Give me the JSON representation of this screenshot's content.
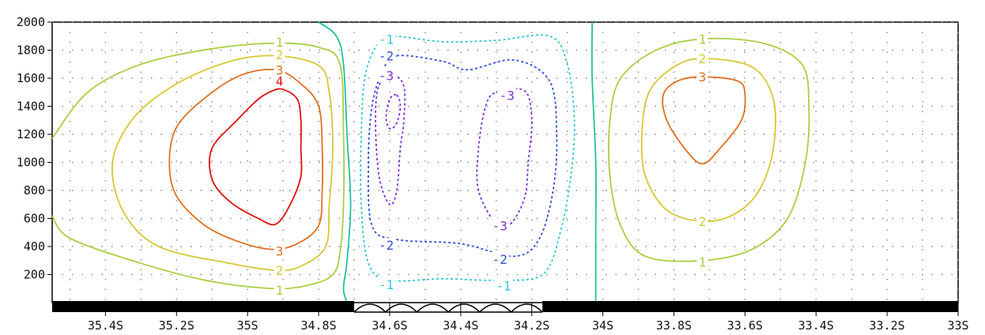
{
  "chart_data": {
    "type": "contour",
    "x_range": [
      -35.55,
      -33.0
    ],
    "y_range": [
      0,
      2000
    ],
    "x_ticks": [
      {
        "value": -35.4,
        "label": "35.4S"
      },
      {
        "value": -35.2,
        "label": "35.2S"
      },
      {
        "value": -35.0,
        "label": "35S"
      },
      {
        "value": -34.8,
        "label": "34.8S"
      },
      {
        "value": -34.6,
        "label": "34.6S"
      },
      {
        "value": -34.4,
        "label": "34.4S"
      },
      {
        "value": -34.2,
        "label": "34.2S"
      },
      {
        "value": -34.0,
        "label": "34S"
      },
      {
        "value": -33.8,
        "label": "33.8S"
      },
      {
        "value": -33.6,
        "label": "33.6S"
      },
      {
        "value": -33.4,
        "label": "33.4S"
      },
      {
        "value": -33.2,
        "label": "33.2S"
      },
      {
        "value": -33.0,
        "label": "33S"
      }
    ],
    "y_ticks": [
      {
        "value": 200,
        "label": "200"
      },
      {
        "value": 400,
        "label": "400"
      },
      {
        "value": 600,
        "label": "600"
      },
      {
        "value": 800,
        "label": "800"
      },
      {
        "value": 1000,
        "label": "1000"
      },
      {
        "value": 1200,
        "label": "1200"
      },
      {
        "value": 1400,
        "label": "1400"
      },
      {
        "value": 1600,
        "label": "1600"
      },
      {
        "value": 1800,
        "label": "1800"
      },
      {
        "value": 2000,
        "label": "2000"
      }
    ],
    "grid": "dotted",
    "terrain": {
      "color": "#000000",
      "solid_segments": [
        [
          -35.55,
          -34.7
        ],
        [
          -34.17,
          -33.0
        ]
      ],
      "arches_segment": [
        -34.7,
        -34.17
      ]
    },
    "contours": [
      {
        "level": 4,
        "color": "#e01010",
        "dashed": false,
        "points": [
          [
            -34.9,
            1520
          ],
          [
            -34.86,
            1450
          ],
          [
            -34.85,
            1300
          ],
          [
            -34.85,
            1100
          ],
          [
            -34.85,
            900
          ],
          [
            -34.88,
            700
          ],
          [
            -34.92,
            560
          ],
          [
            -34.97,
            600
          ],
          [
            -35.05,
            720
          ],
          [
            -35.1,
            880
          ],
          [
            -35.1,
            1100
          ],
          [
            -35.03,
            1300
          ],
          [
            -34.97,
            1450
          ],
          [
            -34.93,
            1510
          ]
        ],
        "labels": [
          {
            "x": -34.91,
            "y": 1580,
            "text": "4"
          }
        ]
      },
      {
        "level": 3,
        "color": "#e07020",
        "dashed": false,
        "points": [
          [
            -34.92,
            1660
          ],
          [
            -34.85,
            1560
          ],
          [
            -34.8,
            1400
          ],
          [
            -34.79,
            1100
          ],
          [
            -34.79,
            800
          ],
          [
            -34.8,
            550
          ],
          [
            -34.86,
            420
          ],
          [
            -34.93,
            380
          ],
          [
            -35.02,
            430
          ],
          [
            -35.12,
            550
          ],
          [
            -35.2,
            760
          ],
          [
            -35.22,
            1000
          ],
          [
            -35.2,
            1250
          ],
          [
            -35.12,
            1460
          ],
          [
            -35.02,
            1620
          ]
        ],
        "labels": [
          {
            "x": -34.91,
            "y": 1660,
            "text": "3"
          },
          {
            "x": -34.91,
            "y": 370,
            "text": "3"
          }
        ]
      },
      {
        "level": 2,
        "color": "#d8c830",
        "dashed": false,
        "points": [
          [
            -34.92,
            1760
          ],
          [
            -34.8,
            1690
          ],
          [
            -34.77,
            1500
          ],
          [
            -34.76,
            1100
          ],
          [
            -34.77,
            700
          ],
          [
            -34.78,
            400
          ],
          [
            -34.85,
            260
          ],
          [
            -34.92,
            230
          ],
          [
            -35.05,
            280
          ],
          [
            -35.25,
            400
          ],
          [
            -35.35,
            650
          ],
          [
            -35.38,
            1000
          ],
          [
            -35.32,
            1320
          ],
          [
            -35.2,
            1560
          ],
          [
            -35.05,
            1720
          ]
        ],
        "labels": [
          {
            "x": -34.91,
            "y": 1770,
            "text": "2"
          },
          {
            "x": -34.91,
            "y": 230,
            "text": "2"
          }
        ]
      },
      {
        "level": 1,
        "color": "#a8d040",
        "dashed": false,
        "points": [
          [
            -35.55,
            1170
          ],
          [
            -35.45,
            1500
          ],
          [
            -35.3,
            1700
          ],
          [
            -35.1,
            1810
          ],
          [
            -34.92,
            1850
          ],
          [
            -34.8,
            1820
          ],
          [
            -34.74,
            1700
          ],
          [
            -34.73,
            1200
          ],
          [
            -34.73,
            700
          ],
          [
            -34.74,
            350
          ],
          [
            -34.76,
            200
          ],
          [
            -34.82,
            130
          ],
          [
            -34.92,
            100
          ],
          [
            -35.1,
            150
          ],
          [
            -35.3,
            280
          ],
          [
            -35.5,
            460
          ],
          [
            -35.55,
            620
          ]
        ],
        "closed": false,
        "labels": [
          {
            "x": -34.91,
            "y": 1860,
            "text": "1"
          },
          {
            "x": -34.91,
            "y": 90,
            "text": "1"
          }
        ]
      },
      {
        "level": 0,
        "color": "#20c0a0",
        "dashed": false,
        "points": [
          [
            -34.8,
            2000
          ],
          [
            -34.75,
            1900
          ],
          [
            -34.73,
            1700
          ],
          [
            -34.72,
            1200
          ],
          [
            -34.71,
            700
          ],
          [
            -34.72,
            300
          ],
          [
            -34.73,
            100
          ],
          [
            -34.72,
            0
          ]
        ],
        "closed": false,
        "labels": []
      },
      {
        "level": 0,
        "color": "#20c0a0",
        "dashed": false,
        "points": [
          [
            -34.03,
            2000
          ],
          [
            -34.03,
            1600
          ],
          [
            -34.02,
            1000
          ],
          [
            -34.02,
            500
          ],
          [
            -34.02,
            0
          ]
        ],
        "closed": false,
        "labels": []
      },
      {
        "level": -1,
        "color": "#30c8d8",
        "dashed": true,
        "points": [
          [
            -34.6,
            1900
          ],
          [
            -34.45,
            1860
          ],
          [
            -34.3,
            1870
          ],
          [
            -34.15,
            1900
          ],
          [
            -34.1,
            1700
          ],
          [
            -34.08,
            1300
          ],
          [
            -34.09,
            900
          ],
          [
            -34.12,
            500
          ],
          [
            -34.17,
            200
          ],
          [
            -34.3,
            160
          ],
          [
            -34.45,
            170
          ],
          [
            -34.6,
            160
          ],
          [
            -34.66,
            280
          ],
          [
            -34.68,
            700
          ],
          [
            -34.68,
            1200
          ],
          [
            -34.67,
            1600
          ],
          [
            -34.64,
            1820
          ]
        ],
        "labels": [
          {
            "x": -34.61,
            "y": 1880,
            "text": "-1"
          },
          {
            "x": -34.61,
            "y": 130,
            "text": "-1"
          },
          {
            "x": -34.28,
            "y": 120,
            "text": "-1"
          }
        ]
      },
      {
        "level": -2,
        "color": "#3050d8",
        "dashed": true,
        "points": [
          [
            -34.58,
            1760
          ],
          [
            -34.45,
            1720
          ],
          [
            -34.38,
            1660
          ],
          [
            -34.25,
            1730
          ],
          [
            -34.15,
            1580
          ],
          [
            -34.13,
            1200
          ],
          [
            -34.14,
            800
          ],
          [
            -34.18,
            450
          ],
          [
            -34.25,
            330
          ],
          [
            -34.4,
            420
          ],
          [
            -34.58,
            450
          ],
          [
            -34.65,
            550
          ],
          [
            -34.66,
            1000
          ],
          [
            -34.65,
            1400
          ],
          [
            -34.62,
            1650
          ]
        ],
        "labels": [
          {
            "x": -34.61,
            "y": 1760,
            "text": "-2"
          },
          {
            "x": -34.61,
            "y": 410,
            "text": "-2"
          },
          {
            "x": -34.29,
            "y": 310,
            "text": "-2"
          }
        ]
      },
      {
        "level": -3,
        "color": "#8030d8",
        "dashed": true,
        "points": [
          [
            -34.59,
            1620
          ],
          [
            -34.56,
            1540
          ],
          [
            -34.56,
            1300
          ],
          [
            -34.57,
            1100
          ],
          [
            -34.58,
            800
          ],
          [
            -34.6,
            700
          ],
          [
            -34.63,
            900
          ],
          [
            -34.64,
            1300
          ],
          [
            -34.63,
            1550
          ]
        ],
        "labels": [
          {
            "x": -34.61,
            "y": 1620,
            "text": "-3"
          }
        ]
      },
      {
        "level": -3,
        "color": "#8030d8",
        "dashed": true,
        "points": [
          [
            -34.3,
            1500
          ],
          [
            -34.22,
            1510
          ],
          [
            -34.2,
            1300
          ],
          [
            -34.21,
            1000
          ],
          [
            -34.22,
            750
          ],
          [
            -34.26,
            560
          ],
          [
            -34.3,
            560
          ],
          [
            -34.35,
            800
          ],
          [
            -34.35,
            1100
          ],
          [
            -34.33,
            1400
          ]
        ],
        "labels": [
          {
            "x": -34.27,
            "y": 1480,
            "text": "-3"
          },
          {
            "x": -34.29,
            "y": 550,
            "text": "-3"
          }
        ]
      },
      {
        "level": -3,
        "color": "#8030d8",
        "dashed": true,
        "points": [
          [
            -34.58,
            1480
          ],
          [
            -34.57,
            1400
          ],
          [
            -34.58,
            1280
          ],
          [
            -34.6,
            1240
          ],
          [
            -34.61,
            1320
          ],
          [
            -34.6,
            1450
          ]
        ],
        "labels": []
      },
      {
        "level": 1,
        "color": "#a8d040",
        "dashed": false,
        "points": [
          [
            -33.72,
            1880
          ],
          [
            -33.55,
            1850
          ],
          [
            -33.44,
            1700
          ],
          [
            -33.42,
            1400
          ],
          [
            -33.43,
            1000
          ],
          [
            -33.48,
            600
          ],
          [
            -33.58,
            380
          ],
          [
            -33.72,
            300
          ],
          [
            -33.88,
            330
          ],
          [
            -33.95,
            550
          ],
          [
            -33.98,
            900
          ],
          [
            -33.98,
            1300
          ],
          [
            -33.95,
            1600
          ],
          [
            -33.85,
            1800
          ]
        ],
        "labels": [
          {
            "x": -33.72,
            "y": 1880,
            "text": "1"
          },
          {
            "x": -33.72,
            "y": 290,
            "text": "1"
          }
        ]
      },
      {
        "level": 2,
        "color": "#d8c830",
        "dashed": false,
        "points": [
          [
            -33.72,
            1740
          ],
          [
            -33.58,
            1680
          ],
          [
            -33.52,
            1450
          ],
          [
            -33.52,
            1100
          ],
          [
            -33.56,
            800
          ],
          [
            -33.63,
            630
          ],
          [
            -33.72,
            580
          ],
          [
            -33.82,
            660
          ],
          [
            -33.88,
            900
          ],
          [
            -33.89,
            1200
          ],
          [
            -33.87,
            1500
          ],
          [
            -33.8,
            1680
          ]
        ],
        "labels": [
          {
            "x": -33.72,
            "y": 1740,
            "text": "2"
          },
          {
            "x": -33.72,
            "y": 580,
            "text": "2"
          }
        ]
      },
      {
        "level": 3,
        "color": "#e07020",
        "dashed": false,
        "points": [
          [
            -33.72,
            1610
          ],
          [
            -33.62,
            1580
          ],
          [
            -33.6,
            1480
          ],
          [
            -33.61,
            1300
          ],
          [
            -33.67,
            1100
          ],
          [
            -33.72,
            990
          ],
          [
            -33.77,
            1100
          ],
          [
            -33.82,
            1300
          ],
          [
            -33.83,
            1480
          ],
          [
            -33.79,
            1580
          ]
        ],
        "labels": [
          {
            "x": -33.72,
            "y": 1610,
            "text": "3"
          }
        ]
      }
    ]
  }
}
